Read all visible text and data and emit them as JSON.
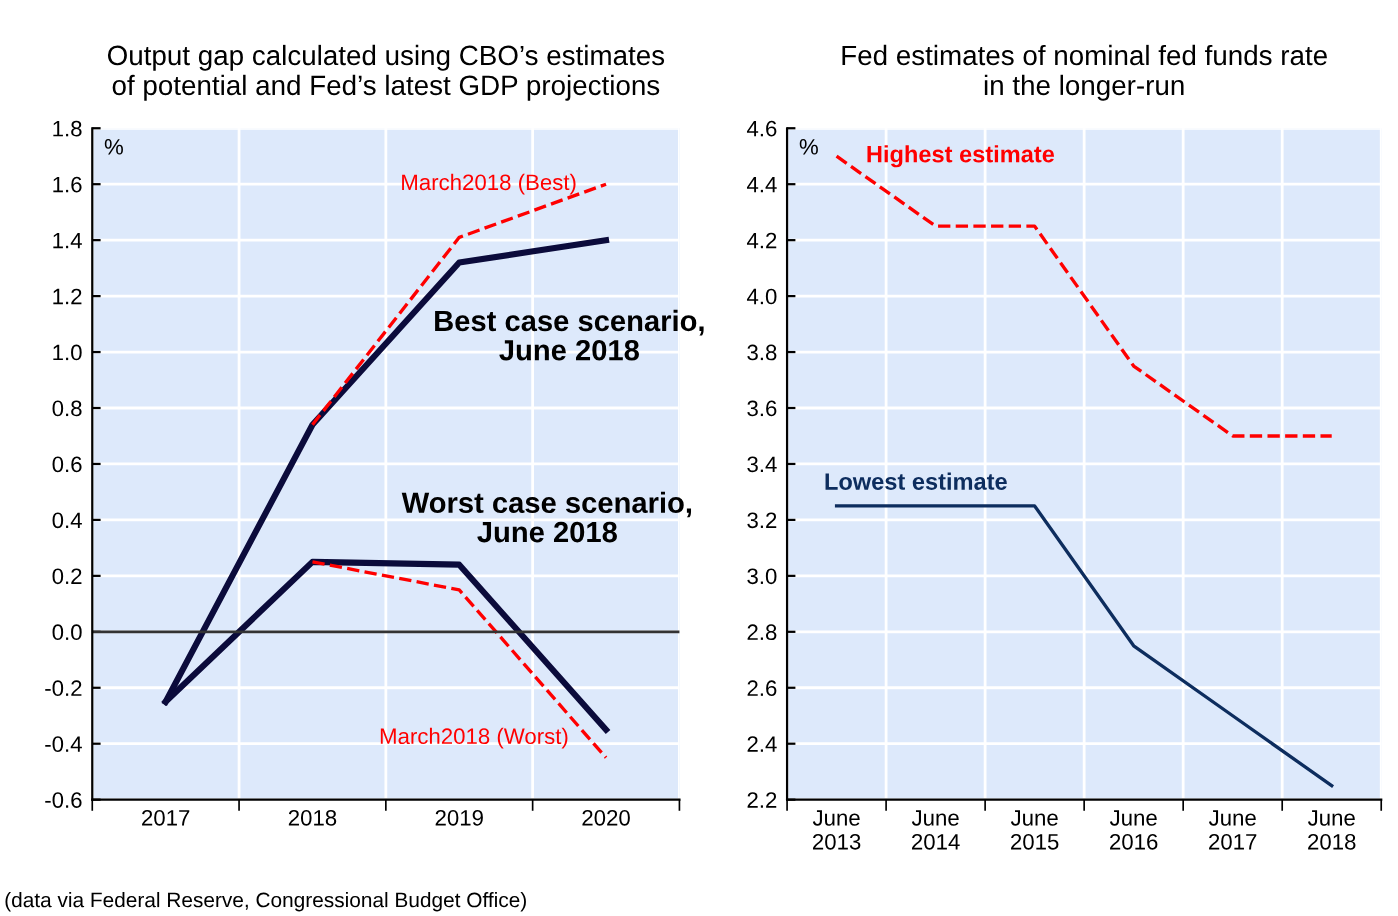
{
  "chart_data": [
    {
      "type": "line",
      "title": "Output gap calculated using CBO’s estimates\nof potential and Fed’s latest GDP projections",
      "ylabel": "%",
      "categories": [
        "2017",
        "2018",
        "2019",
        "2020"
      ],
      "series": [
        {
          "name": "Best case scenario,\nJune 2018",
          "color": "#0b0b3b",
          "line_style": "solid",
          "values": [
            -0.25,
            0.74,
            1.32,
            1.4
          ]
        },
        {
          "name": "March2018 (Best)",
          "color": "#ff0000",
          "line_style": "dashed",
          "values": [
            null,
            0.74,
            1.41,
            1.6
          ]
        },
        {
          "name": "Worst case scenario,\nJune 2018",
          "color": "#0b0b3b",
          "line_style": "solid",
          "values": [
            -0.25,
            0.25,
            0.24,
            -0.35
          ]
        },
        {
          "name": "March2018 (Worst)",
          "color": "#ff0000",
          "line_style": "dashed",
          "values": [
            null,
            0.25,
            0.15,
            -0.45
          ]
        }
      ],
      "ylim": [
        -0.6,
        1.8
      ],
      "yticks": [
        {
          "value": -0.6,
          "label": "-0.6"
        },
        {
          "value": -0.4,
          "label": "-0.4"
        },
        {
          "value": -0.2,
          "label": "-0.2"
        },
        {
          "value": 0,
          "label": "0.0"
        },
        {
          "value": 0.2,
          "label": "0.2"
        },
        {
          "value": 0.4,
          "label": "0.4"
        },
        {
          "value": 0.6,
          "label": "0.6"
        },
        {
          "value": 0.8,
          "label": "0.8"
        },
        {
          "value": 1.0,
          "label": "1.0"
        },
        {
          "value": 1.2,
          "label": "1.2"
        },
        {
          "value": 1.4,
          "label": "1.4"
        },
        {
          "value": 1.6,
          "label": "1.6"
        },
        {
          "value": 1.8,
          "label": "1.8"
        }
      ],
      "ref_lines": [
        {
          "axis": "y",
          "value": 0,
          "color": "#333333"
        }
      ],
      "grid": true,
      "legend": false,
      "annotations": [
        "(data via Federal Reserve, Congressional Budget Office)"
      ]
    },
    {
      "type": "line",
      "title": "Fed estimates of nominal fed funds rate\nin the longer-run",
      "ylabel": "%",
      "categories": [
        "June\n2013",
        "June\n2014",
        "June\n2015",
        "June\n2016",
        "June\n2017",
        "June\n2018"
      ],
      "series": [
        {
          "name": "Highest estimate",
          "color": "#ff0000",
          "line_style": "dashed",
          "values": [
            4.5,
            4.25,
            4.25,
            3.75,
            3.5,
            3.5
          ]
        },
        {
          "name": "Lowest estimate",
          "color": "#0d2d5e",
          "line_style": "solid",
          "values": [
            3.25,
            3.25,
            3.25,
            2.75,
            2.5,
            2.25
          ]
        }
      ],
      "ylim": [
        2.2,
        4.6
      ],
      "yticks": [
        2.2,
        2.4,
        2.6,
        2.8,
        {
          "value": 3.0,
          "label": "3.0"
        },
        3.2,
        3.4,
        3.6,
        3.8,
        {
          "value": 4.0,
          "label": "4.0"
        },
        4.2,
        4.4,
        4.6
      ],
      "grid": true,
      "legend": false
    }
  ]
}
